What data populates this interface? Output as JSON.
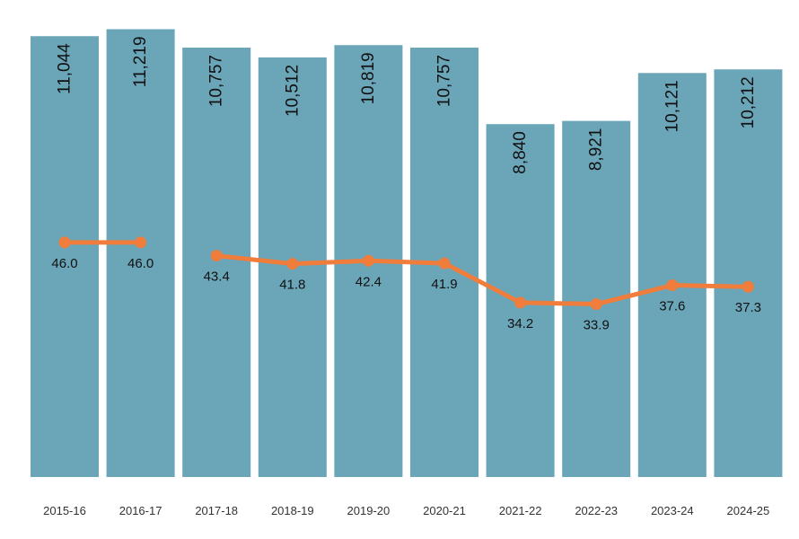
{
  "chart_data": {
    "type": "bar",
    "categories": [
      "2015-16",
      "2016-17",
      "2017-18",
      "2018-19",
      "2019-20",
      "2020-21",
      "2021-22",
      "2022-23",
      "2023-24",
      "2024-25"
    ],
    "series": [
      {
        "type": "bar",
        "values": [
          11044,
          11219,
          10757,
          10512,
          10819,
          10757,
          8840,
          8921,
          10121,
          10212
        ],
        "labels": [
          "11,044",
          "11,219",
          "10,757",
          "10,512",
          "10,819",
          "10,757",
          "8,840",
          "8,921",
          "10,121",
          "10,212"
        ],
        "color": "#6aa5b8",
        "label_rotation": "vertical"
      },
      {
        "type": "line",
        "values": [
          46.0,
          46.0,
          43.4,
          41.8,
          42.4,
          41.9,
          34.2,
          33.9,
          37.6,
          37.3
        ],
        "labels": [
          "46.0",
          "46.0",
          "43.4",
          "41.8",
          "42.4",
          "41.9",
          "34.2",
          "33.9",
          "37.6",
          "37.3"
        ],
        "color": "#f07d3c",
        "gap_after_index": 1,
        "ylim": [
          0,
          90
        ]
      }
    ],
    "ylim": [
      0,
      11500
    ],
    "grid": false,
    "title": "",
    "xlabel": "",
    "ylabel": ""
  }
}
